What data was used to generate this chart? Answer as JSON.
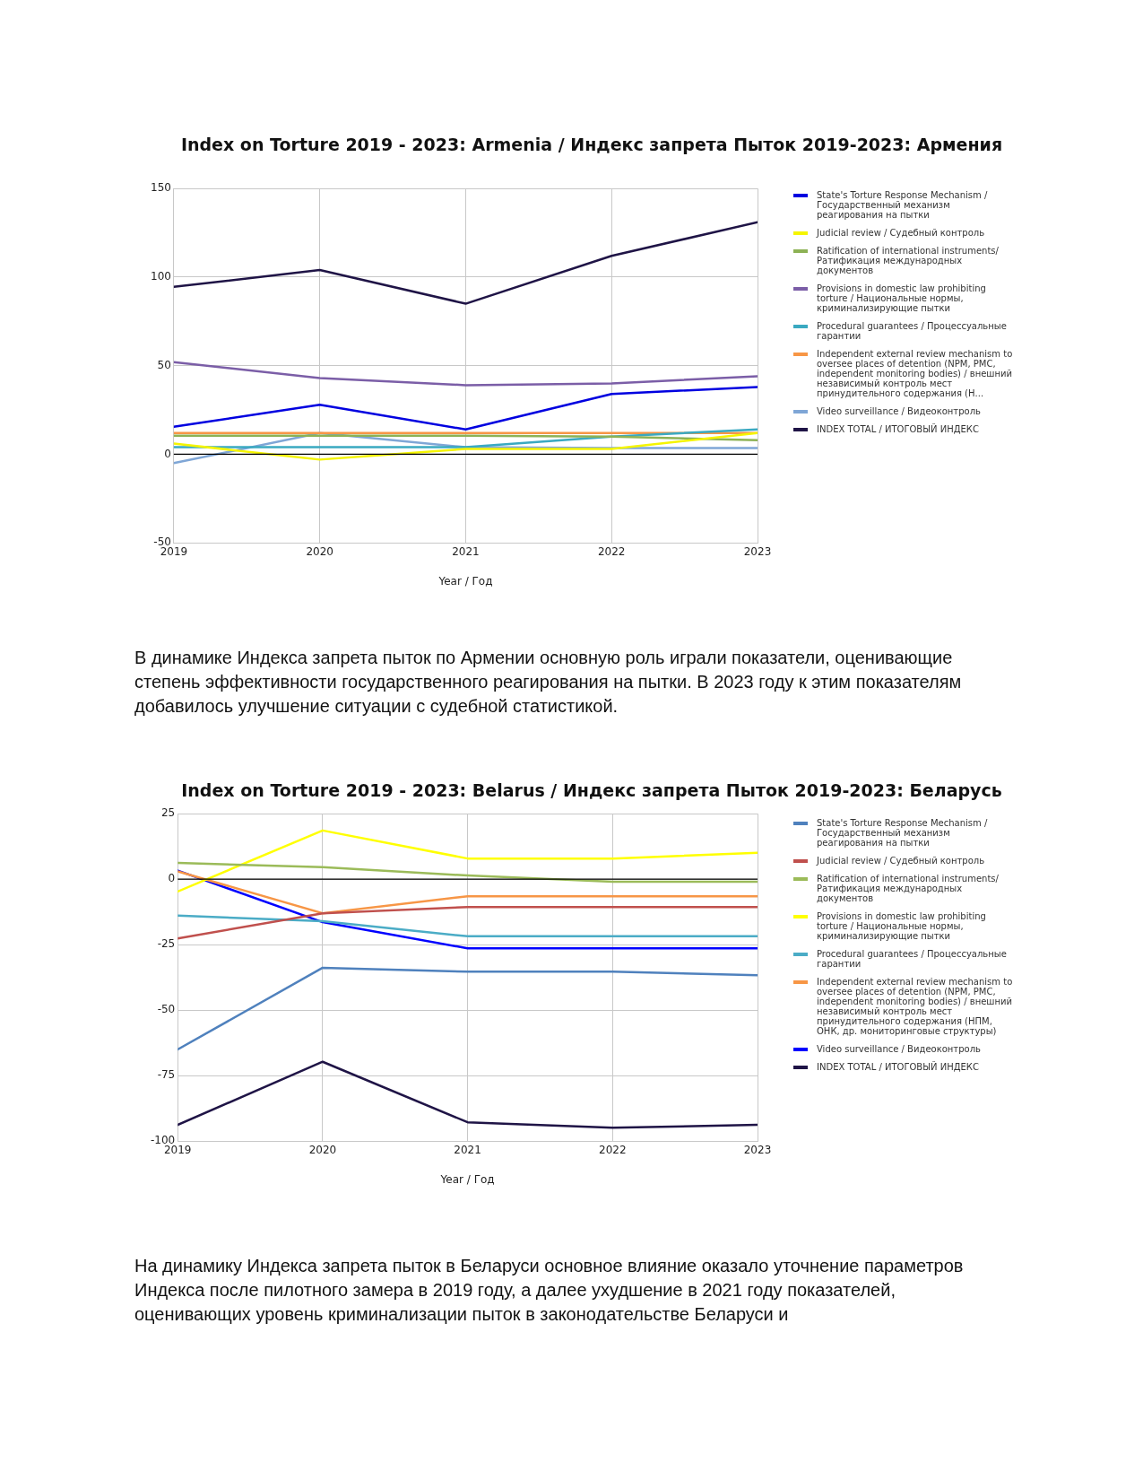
{
  "chart_data": [
    {
      "type": "line",
      "title": "Index on Torture 2019 - 2023: Armenia / Индекс запрета Пыток 2019-2023: Армения",
      "xlabel": "Year / Год",
      "x": [
        2019,
        2020,
        2021,
        2022,
        2023
      ],
      "xlim": [
        2019,
        2023
      ],
      "xticks": [
        2019,
        2020,
        2021,
        2022,
        2023
      ],
      "ylim": [
        -50,
        150
      ],
      "yticks": [
        -50,
        0,
        50,
        100,
        150
      ],
      "grid": true,
      "legend": "right",
      "marker": "none",
      "line_style": "solid",
      "ref_lines": [
        {
          "axis": "y",
          "value": 0,
          "color": "#000000"
        }
      ],
      "annotations": [
        "В динамике Индекса запрета пыток по Армении основную роль играли показатели, оценивающие степень эффективности государственного реагирования на пытки. В 2023 году к этим показателям добавилось улучшение ситуации с судебной статистикой."
      ],
      "series": [
        {
          "name": "State's Torture Response Mechanism / Государственный механизм реагирования на пытки",
          "color": "#0000e0",
          "values": [
            15.5,
            28,
            14,
            34,
            38
          ]
        },
        {
          "name": "Judicial review / Судебный контроль",
          "color": "#f5f500",
          "values": [
            6,
            -3,
            3,
            3,
            12
          ]
        },
        {
          "name": "Ratification of international instruments/ Ратификация международных документов",
          "color": "#8db255",
          "values": [
            10.5,
            10.5,
            10.5,
            10,
            8
          ]
        },
        {
          "name": "Provisions in domestic law prohibiting torture / Национальные нормы, криминализирующие пытки",
          "color": "#7b5ea7",
          "values": [
            52,
            43,
            39,
            40,
            44
          ]
        },
        {
          "name": "Procedural guarantees / Процессуальные гарантии",
          "color": "#3aa9c1",
          "values": [
            4,
            4,
            4,
            10,
            14
          ]
        },
        {
          "name": "Independent external review mechanism to oversee places of detention (NPM, PMC, independent monitoring bodies) / внешний независимый контроль мест принудительного содержания (Н...",
          "color": "#f79646",
          "values": [
            12,
            12,
            12,
            12,
            12
          ]
        },
        {
          "name": "Video surveillance / Видеоконтроль",
          "color": "#7fa6d6",
          "values": [
            -5,
            12,
            4,
            3.5,
            3.5
          ]
        },
        {
          "name": "INDEX TOTAL /  ИТОГОВЫЙ ИНДЕКС",
          "color": "#1f1446",
          "values": [
            94.5,
            104,
            85,
            112,
            131
          ]
        }
      ]
    },
    {
      "type": "line",
      "title": "Index on Torture 2019 - 2023: Belarus / Индекс запрета Пыток 2019-2023: Беларусь",
      "xlabel": "Year / Год",
      "x": [
        2019,
        2020,
        2021,
        2022,
        2023
      ],
      "xlim": [
        2019,
        2023
      ],
      "xticks": [
        2019,
        2020,
        2021,
        2022,
        2023
      ],
      "ylim": [
        -100,
        25
      ],
      "yticks": [
        -100,
        -75,
        -50,
        -25,
        0,
        25
      ],
      "grid": true,
      "legend": "right",
      "marker": "none",
      "line_style": "solid",
      "ref_lines": [
        {
          "axis": "y",
          "value": 0,
          "color": "#000000"
        }
      ],
      "annotations": [
        "На динамику Индекса запрета пыток в Беларуси основное влияние оказало уточнение параметров Индекса после пилотного замера в 2019 году, а далее ухудшение в 2021 году показателей, оценивающих уровень криминализации пыток в законодательстве Беларуси и"
      ],
      "series": [
        {
          "name": "State's Torture Response Mechanism / Государственный механизм реагирования на пытки",
          "color": "#4f81bd",
          "values": [
            -65,
            -33.8,
            -35.3,
            -35.3,
            -36.7
          ]
        },
        {
          "name": "Judicial review / Судебный контроль",
          "color": "#c0504d",
          "values": [
            -22.6,
            -13,
            -10.6,
            -10.6,
            -10.6
          ]
        },
        {
          "name": "Ratification of international instruments/ Ратификация международных документов",
          "color": "#9bbb59",
          "values": [
            6.2,
            4.6,
            1.4,
            -1,
            -1
          ]
        },
        {
          "name": "Provisions in domestic law prohibiting torture / Национальные нормы, криминализирующие пытки",
          "color": "#ffff00",
          "values": [
            -4.7,
            18.6,
            7.9,
            7.9,
            10.1
          ]
        },
        {
          "name": "Procedural guarantees / Процессуальные гарантии",
          "color": "#4bacc6",
          "values": [
            -13.9,
            -16,
            -21.8,
            -21.8,
            -21.8
          ]
        },
        {
          "name": "Independent external review mechanism to oversee places of detention (NPM, PMC, independent monitoring bodies) / внешний независимый контроль мест принудительного содержания (НПМ, ОНК, др. мониторинговые структуры)",
          "color": "#f79646",
          "values": [
            3,
            -13,
            -6.5,
            -6.5,
            -6.5
          ]
        },
        {
          "name": "Video surveillance / Видеоконтроль",
          "color": "#0000ff",
          "values": [
            3.3,
            -16.4,
            -26.4,
            -26.4,
            -26.4
          ]
        },
        {
          "name": "INDEX TOTAL /  ИТОГОВЫЙ ИНДЕКС",
          "color": "#1f1446",
          "values": [
            -93.8,
            -69.7,
            -92.8,
            -94.9,
            -93.8
          ]
        }
      ]
    }
  ]
}
